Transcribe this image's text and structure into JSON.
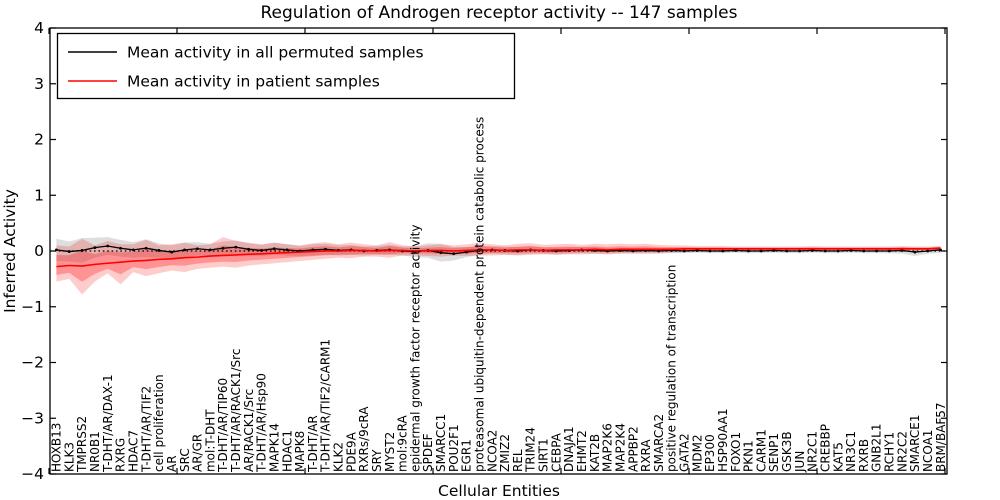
{
  "chart_data": {
    "type": "line",
    "title": "Regulation of Androgen receptor activity -- 147 samples",
    "xlabel": "Cellular Entities",
    "ylabel": "Inferred Activity",
    "ylim": [
      -4,
      4
    ],
    "yticks": [
      4,
      3,
      2,
      1,
      0,
      -1,
      -2,
      -3,
      -4
    ],
    "grid": false,
    "zero_line": true,
    "legend_position": "upper left",
    "categories": [
      "HOXB13",
      "KLK3",
      "TMPRSS2",
      "NR0B1",
      "T-DHT/AR/DAX-1",
      "RXRG",
      "HDAC7",
      "T-DHT/AR/TIF2",
      "cell proliferation",
      "AR",
      "SRC",
      "AR/GR",
      "mol:T-DHT",
      "T-DHT/AR/TIP60",
      "T-DHT/AR/RACK1/Src",
      "AR/RACK1/Src",
      "T-DHT/AR/Hsp90",
      "MAPK14",
      "HDAC1",
      "MAPK8",
      "T-DHT/AR",
      "T-DHT/AR/TIF2/CARM1",
      "KLK2",
      "PDE9A",
      "RXRs/9cRA",
      "SRY",
      "MYST2",
      "mol:9cRA",
      "epidermal growth factor receptor activity",
      "SPDEF",
      "SMARCC1",
      "POU2F1",
      "EGR1",
      "proteasomal ubiquitin-dependent protein catabolic process",
      "NCOA2",
      "ZMIZ2",
      "REL",
      "TRIM24",
      "SIRT1",
      "CEBPA",
      "DNAJA1",
      "EHMT2",
      "KAT2B",
      "MAP2K6",
      "MAP2K4",
      "APPBP2",
      "RXRA",
      "SMARCA2",
      "positive regulation of transcription",
      "GATA2",
      "MDM2",
      "EP300",
      "HSP90AA1",
      "FOXO1",
      "PKN1",
      "CARM1",
      "SENP1",
      "GSK3B",
      "JUN",
      "NR2C1",
      "CREBBP",
      "KAT5",
      "NR3C1",
      "RXRB",
      "GNB2L1",
      "RCHY1",
      "NR2C2",
      "SMARCE1",
      "NCOA1",
      "BRM/BAF57"
    ],
    "series": [
      {
        "name": "Mean activity in all permuted samples",
        "color": "#000000",
        "values": [
          0.02,
          -0.01,
          0.01,
          0.06,
          0.09,
          0.05,
          0.02,
          0.05,
          0.01,
          -0.02,
          0.02,
          0.04,
          0.02,
          0.05,
          0.07,
          0.03,
          0.01,
          0.04,
          0.02,
          0.0,
          0.02,
          0.03,
          0.01,
          0.02,
          0.0,
          0.01,
          0.02,
          0.0,
          -0.01,
          0.01,
          -0.03,
          -0.05,
          -0.02,
          0.01,
          0.02,
          0.01,
          0.0,
          0.02,
          0.01,
          0.0,
          0.01,
          0.02,
          0.01,
          0.0,
          0.01,
          0.0,
          0.01,
          0.0,
          0.01,
          0.0,
          0.01,
          0.0,
          0.0,
          0.01,
          0.0,
          0.0,
          0.01,
          0.0,
          0.0,
          0.01,
          0.0,
          0.0,
          0.01,
          0.0,
          0.0,
          0.0,
          0.01,
          -0.02,
          0.0,
          0.02
        ],
        "band_upper": [
          0.22,
          0.17,
          0.23,
          0.24,
          0.25,
          0.2,
          0.16,
          0.21,
          0.14,
          0.1,
          0.15,
          0.16,
          0.13,
          0.17,
          0.19,
          0.14,
          0.11,
          0.15,
          0.12,
          0.09,
          0.12,
          0.13,
          0.1,
          0.11,
          0.08,
          0.09,
          0.11,
          0.08,
          0.09,
          0.14,
          0.13,
          0.07,
          0.07,
          0.09,
          0.09,
          0.08,
          0.07,
          0.09,
          0.07,
          0.06,
          0.07,
          0.08,
          0.07,
          0.05,
          0.06,
          0.05,
          0.06,
          0.05,
          0.06,
          0.04,
          0.05,
          0.04,
          0.04,
          0.05,
          0.04,
          0.04,
          0.05,
          0.04,
          0.04,
          0.05,
          0.04,
          0.04,
          0.05,
          0.04,
          0.04,
          0.04,
          0.07,
          0.05,
          0.05,
          0.08
        ],
        "band_lower": [
          -0.18,
          -0.19,
          -0.21,
          -0.12,
          -0.07,
          -0.1,
          -0.12,
          -0.11,
          -0.12,
          -0.14,
          -0.11,
          -0.08,
          -0.09,
          -0.07,
          -0.05,
          -0.08,
          -0.09,
          -0.07,
          -0.08,
          -0.09,
          -0.08,
          -0.07,
          -0.08,
          -0.07,
          -0.08,
          -0.07,
          -0.07,
          -0.08,
          -0.11,
          -0.12,
          -0.19,
          -0.17,
          -0.11,
          -0.07,
          -0.05,
          -0.06,
          -0.07,
          -0.05,
          -0.05,
          -0.06,
          -0.05,
          -0.04,
          -0.05,
          -0.05,
          -0.04,
          -0.05,
          -0.04,
          -0.05,
          -0.04,
          -0.04,
          -0.03,
          -0.04,
          -0.04,
          -0.03,
          -0.04,
          -0.04,
          -0.03,
          -0.04,
          -0.04,
          -0.03,
          -0.04,
          -0.04,
          -0.03,
          -0.04,
          -0.04,
          -0.04,
          -0.05,
          -0.09,
          -0.05,
          -0.04
        ]
      },
      {
        "name": "Mean activity in patient samples",
        "color": "#ff0000",
        "values": [
          -0.28,
          -0.26,
          -0.27,
          -0.24,
          -0.22,
          -0.2,
          -0.18,
          -0.17,
          -0.15,
          -0.14,
          -0.12,
          -0.11,
          -0.09,
          -0.08,
          -0.07,
          -0.06,
          -0.05,
          -0.04,
          -0.03,
          -0.02,
          -0.01,
          0.0,
          0.0,
          0.01,
          0.01,
          0.0,
          0.01,
          0.01,
          0.0,
          0.01,
          0.01,
          0.0,
          0.01,
          0.02,
          0.02,
          0.01,
          0.02,
          0.02,
          0.01,
          0.02,
          0.02,
          0.02,
          0.03,
          0.02,
          0.03,
          0.03,
          0.03,
          0.03,
          0.03,
          0.04,
          0.04,
          0.04,
          0.04,
          0.04,
          0.04,
          0.04,
          0.04,
          0.04,
          0.04,
          0.04,
          0.04,
          0.04,
          0.04,
          0.04,
          0.04,
          0.04,
          0.04,
          0.04,
          0.04,
          0.05
        ],
        "band_upper": [
          0.1,
          0.08,
          0.22,
          0.1,
          0.18,
          0.12,
          0.12,
          0.2,
          0.1,
          0.12,
          0.15,
          0.1,
          0.12,
          0.25,
          0.18,
          0.15,
          0.12,
          0.15,
          0.12,
          0.1,
          0.14,
          0.16,
          0.12,
          0.15,
          0.12,
          0.1,
          0.16,
          0.1,
          0.08,
          0.1,
          0.12,
          0.1,
          0.12,
          0.14,
          0.12,
          0.1,
          0.13,
          0.14,
          0.11,
          0.12,
          0.13,
          0.11,
          0.13,
          0.12,
          0.13,
          0.12,
          0.13,
          0.11,
          0.1,
          0.1,
          0.09,
          0.09,
          0.09,
          0.08,
          0.08,
          0.08,
          0.08,
          0.08,
          0.08,
          0.09,
          0.08,
          0.08,
          0.08,
          0.08,
          0.08,
          0.08,
          0.09,
          0.08,
          0.08,
          0.09
        ],
        "band_lower": [
          -0.55,
          -0.5,
          -0.78,
          -0.55,
          -0.4,
          -0.6,
          -0.38,
          -0.45,
          -0.4,
          -0.35,
          -0.38,
          -0.32,
          -0.3,
          -0.28,
          -0.3,
          -0.26,
          -0.24,
          -0.22,
          -0.2,
          -0.18,
          -0.16,
          -0.14,
          -0.12,
          -0.13,
          -0.1,
          -0.1,
          -0.12,
          -0.08,
          -0.08,
          -0.09,
          -0.1,
          -0.08,
          -0.09,
          -0.08,
          -0.08,
          -0.07,
          -0.08,
          -0.07,
          -0.06,
          -0.07,
          -0.06,
          -0.06,
          -0.05,
          -0.06,
          -0.05,
          -0.04,
          -0.05,
          -0.04,
          -0.03,
          -0.02,
          -0.02,
          -0.01,
          -0.02,
          -0.01,
          -0.01,
          -0.01,
          -0.01,
          0.0,
          0.0,
          -0.01,
          0.0,
          0.0,
          0.0,
          0.0,
          0.0,
          0.0,
          -0.01,
          0.0,
          0.0,
          0.0
        ]
      }
    ],
    "band_colors": {
      "permuted": "#000000",
      "patient": "#ff0000"
    }
  },
  "legend": {
    "items": [
      {
        "label": "Mean activity in all permuted samples",
        "color": "#000000"
      },
      {
        "label": "Mean activity in patient samples",
        "color": "#ff0000"
      }
    ]
  }
}
